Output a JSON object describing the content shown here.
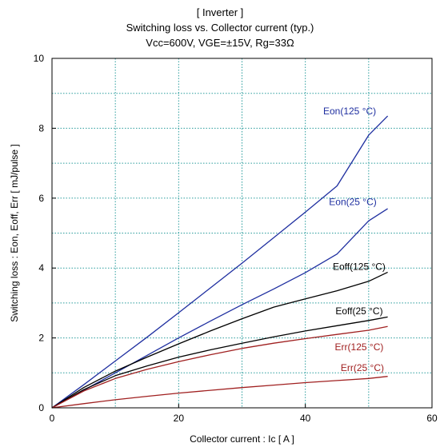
{
  "chart_data": {
    "type": "line",
    "title_lines": [
      "[ Inverter ]",
      "Switching loss  vs.  Collector current  (typ.)",
      "Vcc=600V, VGE=±15V, Rg=33Ω"
    ],
    "xlabel": "Collector current  :  Ic  [ A ]",
    "ylabel": "Switching loss  :  Eon, Eoff, Err  [ mJ/pulse ]",
    "xlim": [
      0,
      60
    ],
    "ylim": [
      0,
      10
    ],
    "xticks": [
      0,
      20,
      40,
      60
    ],
    "yticks": [
      0,
      2,
      4,
      6,
      8,
      10
    ],
    "x_minor_step": 10,
    "y_minor_step": 1,
    "grid": true,
    "grid_color": "#2a9d9d",
    "x": [
      0,
      5,
      10,
      15,
      20,
      25,
      30,
      35,
      40,
      45,
      50,
      53
    ],
    "series": [
      {
        "name": "Eon(125 °C)",
        "color": "#1f2fa0",
        "values": [
          0,
          0.66,
          1.34,
          2.02,
          2.72,
          3.43,
          4.14,
          4.87,
          5.6,
          6.35,
          7.8,
          8.35
        ],
        "label_xy": [
          47,
          8.4
        ]
      },
      {
        "name": "Eon(25 °C)",
        "color": "#1f2fa0",
        "values": [
          0,
          0.5,
          1.0,
          1.5,
          2.0,
          2.48,
          2.95,
          3.4,
          3.87,
          4.4,
          5.35,
          5.7
        ],
        "label_xy": [
          47.5,
          5.8
        ]
      },
      {
        "name": "Eoff(125 °C)",
        "color": "#000000",
        "values": [
          0,
          0.58,
          1.05,
          1.45,
          1.83,
          2.2,
          2.55,
          2.88,
          3.12,
          3.35,
          3.62,
          3.88
        ],
        "label_xy": [
          48.5,
          3.95
        ]
      },
      {
        "name": "Eoff(25 °C)",
        "color": "#000000",
        "values": [
          0,
          0.52,
          0.92,
          1.2,
          1.45,
          1.66,
          1.85,
          2.03,
          2.2,
          2.35,
          2.5,
          2.6
        ],
        "label_xy": [
          48.5,
          2.68
        ]
      },
      {
        "name": "Err(125 °C)",
        "color": "#a02020",
        "values": [
          0,
          0.48,
          0.84,
          1.1,
          1.32,
          1.52,
          1.7,
          1.85,
          1.98,
          2.1,
          2.22,
          2.33
        ],
        "label_xy": [
          48.5,
          1.65
        ]
      },
      {
        "name": "Err(25 °C)",
        "color": "#a02020",
        "values": [
          0,
          0.12,
          0.23,
          0.33,
          0.42,
          0.5,
          0.58,
          0.65,
          0.72,
          0.78,
          0.84,
          0.9
        ],
        "label_xy": [
          49,
          1.05
        ]
      }
    ]
  }
}
